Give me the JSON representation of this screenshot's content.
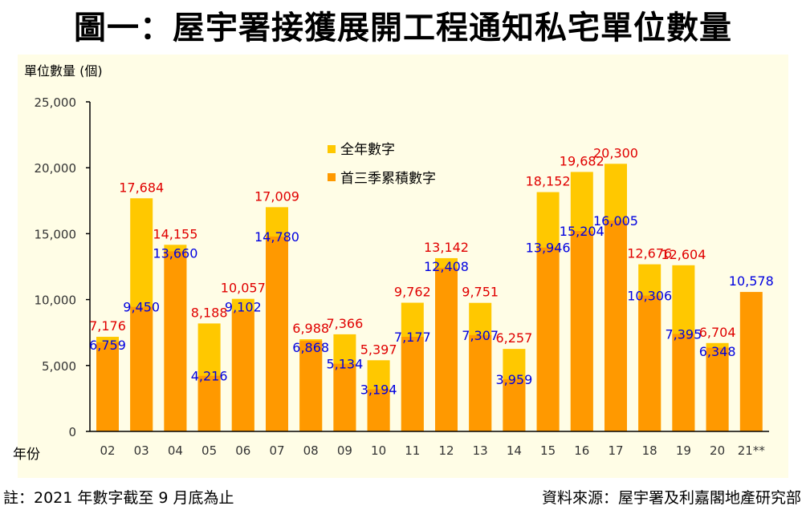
{
  "title": "圖一：屋宇署接獲展開工程通知私宅單位數量",
  "footnote": "註：2021 年數字截至 9 月底為止",
  "source": "資料來源：屋宇署及利嘉閣地產研究部",
  "colors": {
    "full_year": "#FFC800",
    "q3_cumulative": "#FF9900",
    "full_year_label": "#E00000",
    "q3_label": "#0000E0",
    "plot_bg": "#FFFDE6"
  },
  "chart_data": {
    "type": "bar",
    "stacked_overlay": true,
    "ylabel": "單位數量 (個)",
    "xlabel": "年份",
    "ylim": [
      0,
      25000
    ],
    "yticks": [
      "0",
      "5,000",
      "10,000",
      "15,000",
      "20,000",
      "25,000"
    ],
    "yticks_values": [
      0,
      5000,
      10000,
      15000,
      20000,
      25000
    ],
    "grid": false,
    "legend_position": "top-center",
    "categories": [
      "02",
      "03",
      "04",
      "05",
      "06",
      "07",
      "08",
      "09",
      "10",
      "11",
      "12",
      "13",
      "14",
      "15",
      "16",
      "17",
      "18",
      "19",
      "20",
      "21**"
    ],
    "series": [
      {
        "name": "全年數字",
        "values": [
          7176,
          17684,
          14155,
          8188,
          10057,
          17009,
          6988,
          7366,
          5397,
          9762,
          13142,
          9751,
          6257,
          18152,
          19682,
          20300,
          12676,
          12604,
          6704,
          null
        ]
      },
      {
        "name": "首三季累積數字",
        "values": [
          6759,
          9450,
          13660,
          4216,
          9102,
          14780,
          6868,
          5134,
          3194,
          7177,
          12408,
          7307,
          3959,
          13946,
          15204,
          16005,
          10306,
          7395,
          6348,
          10578
        ]
      }
    ]
  }
}
